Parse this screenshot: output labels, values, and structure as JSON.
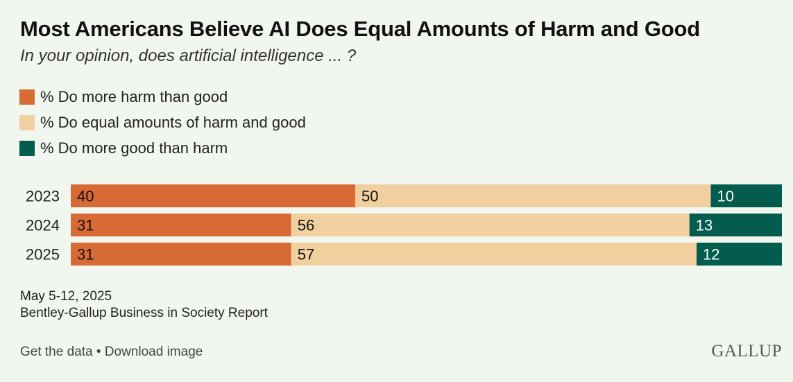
{
  "header": {
    "title": "Most Americans Believe AI Does Equal Amounts of Harm and Good",
    "subtitle": "In your opinion, does artificial intelligence ... ?"
  },
  "legend": [
    {
      "label": "% Do more harm than good",
      "color": "#d86a36"
    },
    {
      "label": "% Do equal amounts of harm and good",
      "color": "#f1cf9f"
    },
    {
      "label": "% Do more good than harm",
      "color": "#035c4e"
    }
  ],
  "chart_data": {
    "type": "bar",
    "orientation": "horizontal",
    "stacked": true,
    "categories": [
      "2023",
      "2024",
      "2025"
    ],
    "series": [
      {
        "name": "% Do more harm than good",
        "values": [
          40,
          31,
          31
        ],
        "color": "#d86a36"
      },
      {
        "name": "% Do equal amounts of harm and good",
        "values": [
          50,
          56,
          57
        ],
        "color": "#f1cf9f"
      },
      {
        "name": "% Do more good than harm",
        "values": [
          10,
          13,
          12
        ],
        "color": "#035c4e"
      }
    ],
    "title": "Most Americans Believe AI Does Equal Amounts of Harm and Good",
    "xlabel": "",
    "ylabel": "",
    "grid": false,
    "legend_position": "top-left"
  },
  "notes": {
    "date": "May 5-12, 2025",
    "source": "Bentley-Gallup Business in Society Report"
  },
  "footer": {
    "get_data": "Get the data",
    "separator": " • ",
    "download": "Download image"
  },
  "logo": {
    "text": "GALLUP"
  }
}
